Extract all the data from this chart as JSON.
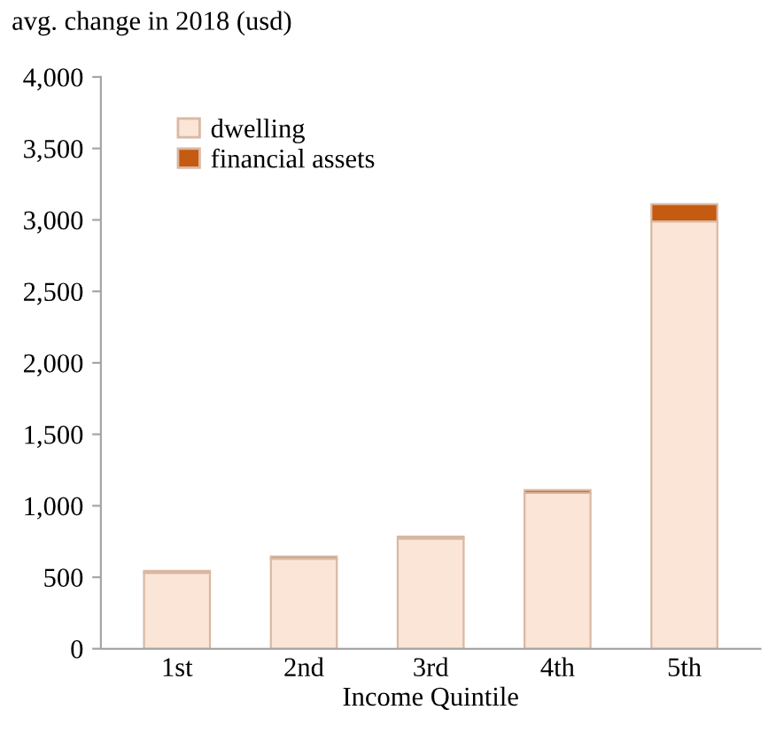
{
  "chart_data": {
    "type": "bar",
    "stacked": true,
    "ylabel": "avg. change in 2018 (usd)",
    "xlabel": "Income Quintile",
    "categories": [
      "1st",
      "2nd",
      "3rd",
      "4th",
      "5th"
    ],
    "series": [
      {
        "name": "dwelling",
        "color": "#fbe5d6",
        "values": [
          530,
          630,
          770,
          1090,
          2990
        ]
      },
      {
        "name": "financial assets",
        "color": "#c55a11",
        "values": [
          15,
          15,
          15,
          20,
          120
        ]
      }
    ],
    "ylim": [
      0,
      4000
    ],
    "yticks": [
      0,
      500,
      {
        "value": 1000,
        "label": "1,000"
      },
      {
        "value": 1500,
        "label": "1,500"
      },
      {
        "value": 2000,
        "label": "2,000"
      },
      {
        "value": 2500,
        "label": "2,500"
      },
      {
        "value": 3000,
        "label": "3,000"
      },
      {
        "value": 3500,
        "label": "3,500"
      },
      {
        "value": 4000,
        "label": "4,000"
      }
    ],
    "grid": false,
    "legend": "top left"
  }
}
